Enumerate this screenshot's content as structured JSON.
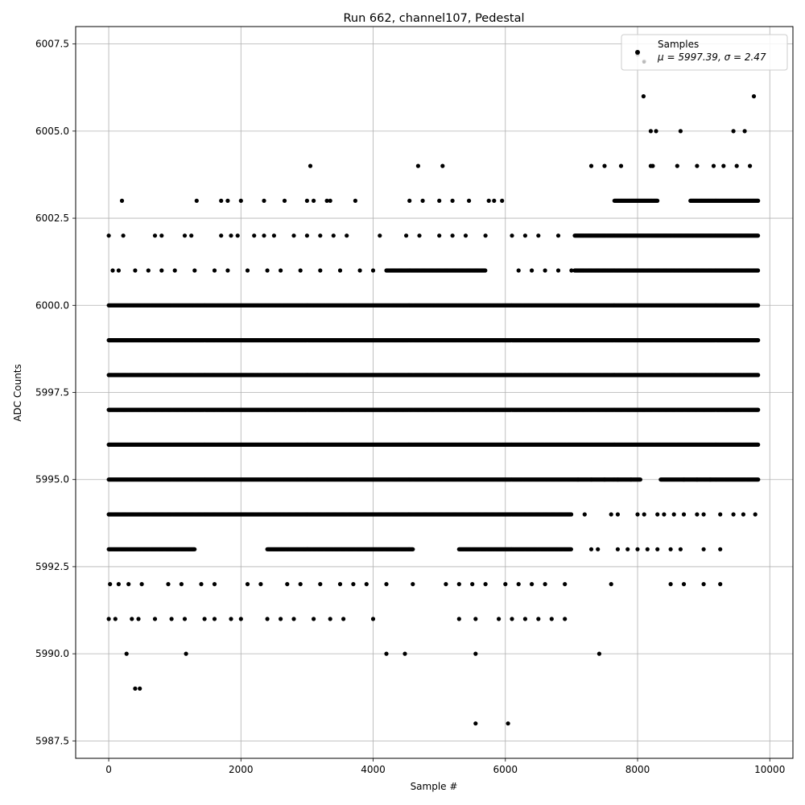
{
  "chart_data": {
    "type": "scatter",
    "title": "Run 662, channel107, Pedestal",
    "xlabel": "Sample #",
    "ylabel": "ADC Counts",
    "xlim": [
      -500,
      10350
    ],
    "ylim": [
      5987.0,
      6008.0
    ],
    "x_ticks": [
      0,
      2000,
      4000,
      6000,
      8000,
      10000
    ],
    "x_tick_labels": [
      "0",
      "2000",
      "4000",
      "6000",
      "8000",
      "10000"
    ],
    "y_ticks": [
      5987.5,
      5990.0,
      5992.5,
      5995.0,
      5997.5,
      6000.0,
      6002.5,
      6005.0,
      6007.5
    ],
    "y_tick_labels": [
      "5987.5",
      "5990.0",
      "5992.5",
      "5995.0",
      "5997.5",
      "6000.0",
      "6002.5",
      "6005.0",
      "6007.5"
    ],
    "grid": true,
    "legend_position": "top-right",
    "legend": {
      "entries": [
        "Samples"
      ],
      "stats_text": "μ = 5997.39, σ = 2.47"
    },
    "marker_color": "#000000",
    "series": [
      {
        "name": "Samples",
        "bands": [
          {
            "y": 5996,
            "x_ranges": [
              [
                0,
                9830
              ]
            ]
          },
          {
            "y": 5997,
            "x_ranges": [
              [
                0,
                9830
              ]
            ]
          },
          {
            "y": 5998,
            "x_ranges": [
              [
                0,
                9830
              ]
            ]
          },
          {
            "y": 5995,
            "x_ranges": [
              [
                0,
                8050
              ],
              [
                8350,
                9830
              ]
            ]
          },
          {
            "y": 5999,
            "x_ranges": [
              [
                0,
                9830
              ]
            ]
          },
          {
            "y": 5994,
            "x_ranges": [
              [
                0,
                7000
              ]
            ]
          },
          {
            "y": 6000,
            "x_ranges": [
              [
                0,
                9830
              ]
            ]
          },
          {
            "y": 6001,
            "x_ranges": [
              [
                4200,
                5700
              ],
              [
                7050,
                9830
              ]
            ]
          },
          {
            "y": 5993,
            "x_ranges": [
              [
                0,
                1300
              ],
              [
                2400,
                4600
              ],
              [
                5300,
                7000
              ]
            ]
          },
          {
            "y": 6002,
            "x_ranges": [
              [
                7050,
                9830
              ]
            ]
          },
          {
            "y": 6003,
            "x_ranges": [
              [
                7650,
                8300
              ],
              [
                8800,
                9830
              ]
            ]
          }
        ],
        "points": [
          [
            0,
            6002
          ],
          [
            60,
            6001
          ],
          [
            220,
            6002
          ],
          [
            200,
            6003
          ],
          [
            1330,
            6003
          ],
          [
            1700,
            6003
          ],
          [
            1800,
            6003
          ],
          [
            2000,
            6003
          ],
          [
            2350,
            6003
          ],
          [
            2660,
            6003
          ],
          [
            3000,
            6003
          ],
          [
            3050,
            6004
          ],
          [
            3100,
            6003
          ],
          [
            3300,
            6003
          ],
          [
            3350,
            6003
          ],
          [
            3730,
            6003
          ],
          [
            4550,
            6003
          ],
          [
            4680,
            6004
          ],
          [
            4750,
            6003
          ],
          [
            5050,
            6004
          ],
          [
            5000,
            6003
          ],
          [
            5200,
            6003
          ],
          [
            5450,
            6003
          ],
          [
            5750,
            6003
          ],
          [
            5830,
            6003
          ],
          [
            5950,
            6003
          ],
          [
            7300,
            6004
          ],
          [
            7500,
            6004
          ],
          [
            7750,
            6004
          ],
          [
            8200,
            6004
          ],
          [
            8230,
            6004
          ],
          [
            8600,
            6004
          ],
          [
            8900,
            6004
          ],
          [
            9150,
            6004
          ],
          [
            9300,
            6004
          ],
          [
            9500,
            6004
          ],
          [
            9700,
            6004
          ],
          [
            8200,
            6005
          ],
          [
            8280,
            6005
          ],
          [
            8650,
            6005
          ],
          [
            9450,
            6005
          ],
          [
            9620,
            6005
          ],
          [
            8090,
            6006
          ],
          [
            9760,
            6006
          ],
          [
            8100,
            6007
          ],
          [
            8000,
            6007.2
          ],
          [
            700,
            6002
          ],
          [
            800,
            6002
          ],
          [
            1150,
            6002
          ],
          [
            1250,
            6002
          ],
          [
            1700,
            6002
          ],
          [
            1850,
            6002
          ],
          [
            1950,
            6002
          ],
          [
            2200,
            6002
          ],
          [
            2350,
            6002
          ],
          [
            2500,
            6002
          ],
          [
            2800,
            6002
          ],
          [
            3000,
            6002
          ],
          [
            3200,
            6002
          ],
          [
            3400,
            6002
          ],
          [
            3600,
            6002
          ],
          [
            4100,
            6002
          ],
          [
            4500,
            6002
          ],
          [
            4700,
            6002
          ],
          [
            5000,
            6002
          ],
          [
            5200,
            6002
          ],
          [
            5400,
            6002
          ],
          [
            5700,
            6002
          ],
          [
            6100,
            6002
          ],
          [
            6300,
            6002
          ],
          [
            6500,
            6002
          ],
          [
            6800,
            6002
          ],
          [
            150,
            6001
          ],
          [
            400,
            6001
          ],
          [
            600,
            6001
          ],
          [
            800,
            6001
          ],
          [
            1000,
            6001
          ],
          [
            1300,
            6001
          ],
          [
            1600,
            6001
          ],
          [
            1800,
            6001
          ],
          [
            2100,
            6001
          ],
          [
            2400,
            6001
          ],
          [
            2600,
            6001
          ],
          [
            2900,
            6001
          ],
          [
            3200,
            6001
          ],
          [
            3500,
            6001
          ],
          [
            3800,
            6001
          ],
          [
            4000,
            6001
          ],
          [
            6200,
            6001
          ],
          [
            6400,
            6001
          ],
          [
            6600,
            6001
          ],
          [
            6800,
            6001
          ],
          [
            7000,
            6001
          ],
          [
            20,
            5992
          ],
          [
            150,
            5992
          ],
          [
            300,
            5992
          ],
          [
            500,
            5992
          ],
          [
            900,
            5992
          ],
          [
            1100,
            5992
          ],
          [
            1400,
            5992
          ],
          [
            1600,
            5992
          ],
          [
            2100,
            5992
          ],
          [
            2300,
            5992
          ],
          [
            2700,
            5992
          ],
          [
            2900,
            5992
          ],
          [
            3200,
            5992
          ],
          [
            3500,
            5992
          ],
          [
            3700,
            5992
          ],
          [
            3900,
            5992
          ],
          [
            4200,
            5992
          ],
          [
            4600,
            5992
          ],
          [
            5100,
            5992
          ],
          [
            5300,
            5992
          ],
          [
            5500,
            5992
          ],
          [
            5700,
            5992
          ],
          [
            6000,
            5992
          ],
          [
            6200,
            5992
          ],
          [
            6400,
            5992
          ],
          [
            6600,
            5992
          ],
          [
            6900,
            5992
          ],
          [
            7600,
            5992
          ],
          [
            8500,
            5992
          ],
          [
            8700,
            5992
          ],
          [
            9000,
            5992
          ],
          [
            9250,
            5992
          ],
          [
            0,
            5991
          ],
          [
            100,
            5991
          ],
          [
            350,
            5991
          ],
          [
            450,
            5991
          ],
          [
            700,
            5991
          ],
          [
            950,
            5991
          ],
          [
            1150,
            5991
          ],
          [
            1450,
            5991
          ],
          [
            1600,
            5991
          ],
          [
            1850,
            5991
          ],
          [
            2000,
            5991
          ],
          [
            2400,
            5991
          ],
          [
            2600,
            5991
          ],
          [
            2800,
            5991
          ],
          [
            3100,
            5991
          ],
          [
            3350,
            5991
          ],
          [
            3550,
            5991
          ],
          [
            4000,
            5991
          ],
          [
            5300,
            5991
          ],
          [
            5550,
            5991
          ],
          [
            5900,
            5991
          ],
          [
            6100,
            5991
          ],
          [
            6300,
            5991
          ],
          [
            6500,
            5991
          ],
          [
            6700,
            5991
          ],
          [
            6900,
            5991
          ],
          [
            270,
            5990
          ],
          [
            1170,
            5990
          ],
          [
            4200,
            5990
          ],
          [
            4480,
            5990
          ],
          [
            5550,
            5990
          ],
          [
            7420,
            5990
          ],
          [
            400,
            5989
          ],
          [
            470,
            5989
          ],
          [
            5550,
            5988
          ],
          [
            6040,
            5988
          ],
          [
            7200,
            5994
          ],
          [
            7600,
            5994
          ],
          [
            7700,
            5994
          ],
          [
            8000,
            5994
          ],
          [
            8100,
            5994
          ],
          [
            8300,
            5994
          ],
          [
            8400,
            5994
          ],
          [
            8550,
            5994
          ],
          [
            8700,
            5994
          ],
          [
            8900,
            5994
          ],
          [
            9000,
            5994
          ],
          [
            9250,
            5994
          ],
          [
            9450,
            5994
          ],
          [
            9600,
            5994
          ],
          [
            9780,
            5994
          ],
          [
            7300,
            5993
          ],
          [
            7400,
            5993
          ],
          [
            7700,
            5993
          ],
          [
            7850,
            5993
          ],
          [
            8000,
            5993
          ],
          [
            8150,
            5993
          ],
          [
            8300,
            5993
          ],
          [
            8500,
            5993
          ],
          [
            8650,
            5993
          ],
          [
            9000,
            5993
          ],
          [
            9250,
            5993
          ],
          [
            7100,
            5995
          ],
          [
            7300,
            5995
          ],
          [
            7500,
            5995
          ],
          [
            7700,
            5995
          ],
          [
            7900,
            5995
          ],
          [
            8700,
            5995
          ],
          [
            8900,
            5995
          ],
          [
            9100,
            5995
          ]
        ]
      }
    ]
  }
}
